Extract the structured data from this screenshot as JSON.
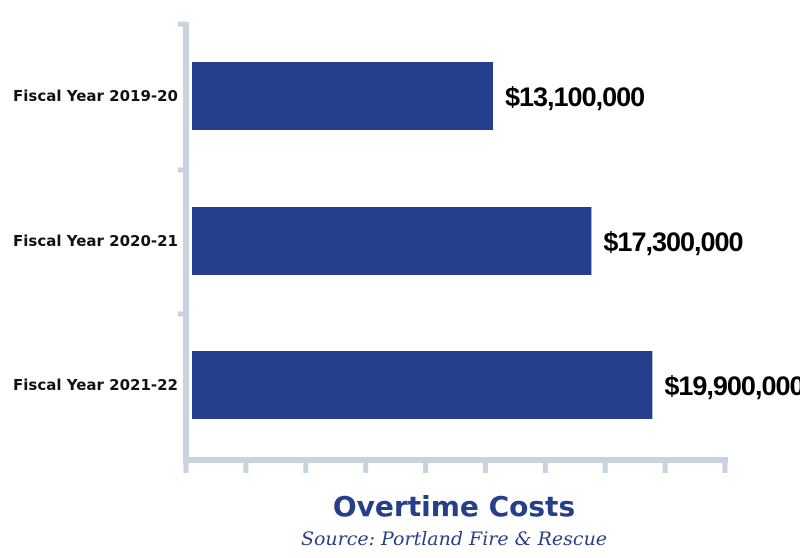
{
  "chart_data": {
    "type": "bar",
    "orientation": "horizontal",
    "title": "Overtime Costs",
    "subtitle": "Source: Portland Fire & Rescue",
    "categories": [
      "Fiscal Year 2019-20",
      "Fiscal Year 2020-21",
      "Fiscal Year 2021-22"
    ],
    "values": [
      13100000,
      17300000,
      19900000
    ],
    "value_labels": [
      "$13,100,000",
      "$17,300,000",
      "$19,900,000"
    ],
    "xlim": [
      0,
      23000000
    ],
    "grid": false,
    "legend": "none",
    "colors": {
      "bar": "#253f8d",
      "axis": "#c8d3e0",
      "title": "#263f8b"
    }
  }
}
